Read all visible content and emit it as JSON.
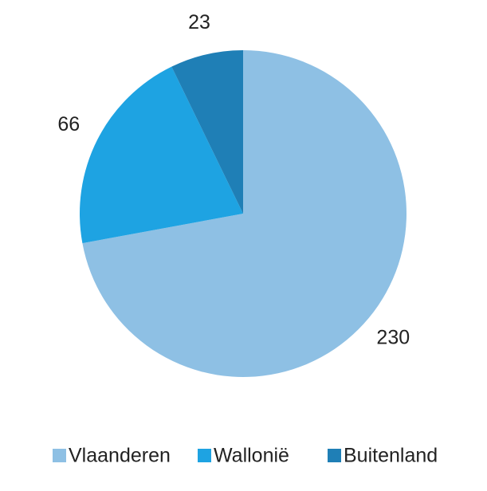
{
  "chart_data": {
    "type": "pie",
    "categories": [
      "Vlaanderen",
      "Wallonië",
      "Buitenland"
    ],
    "values": [
      230,
      66,
      23
    ],
    "colors": [
      "#8ec0e4",
      "#1ea3e2",
      "#1f7fb6"
    ]
  }
}
